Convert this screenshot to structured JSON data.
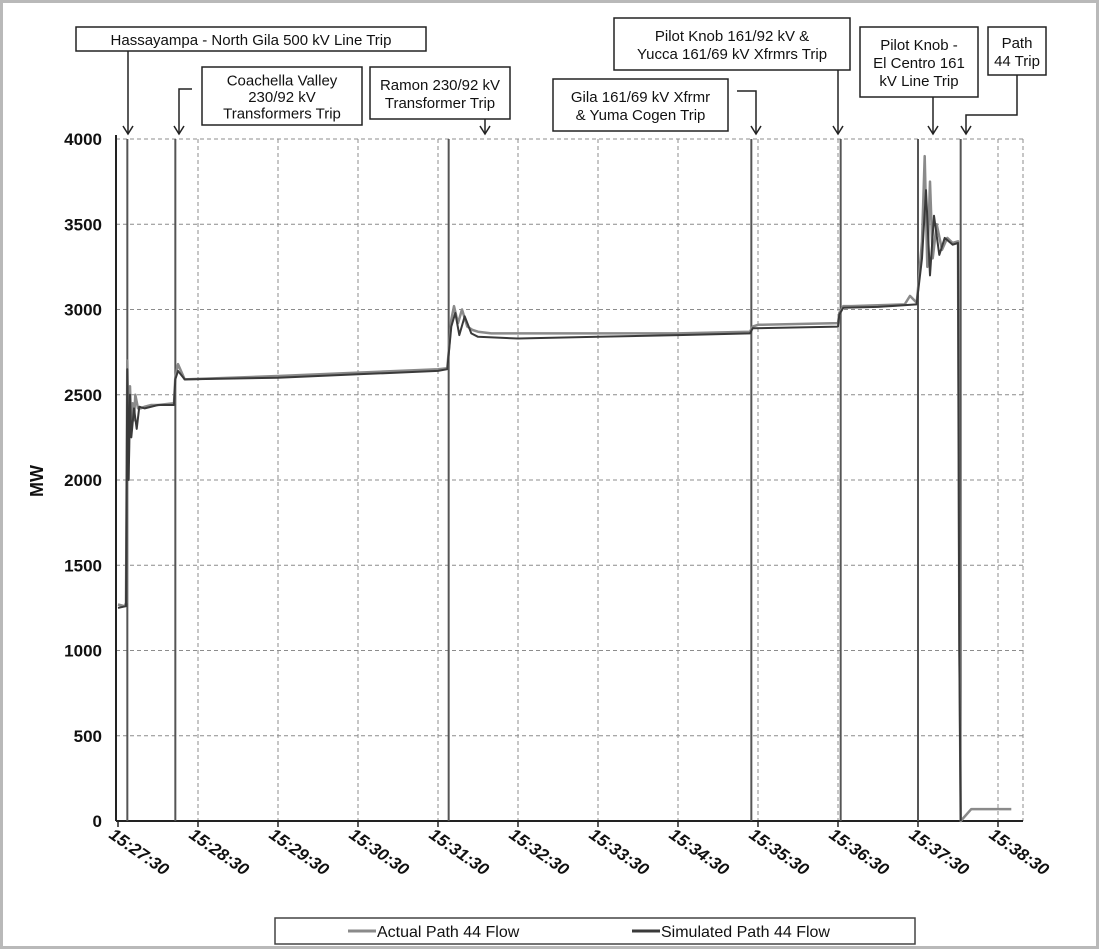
{
  "chart_data": {
    "type": "line",
    "title": "",
    "xlabel": "",
    "ylabel": "MW",
    "ylim": [
      0,
      4000
    ],
    "yticks": [
      0,
      500,
      1000,
      1500,
      2000,
      2500,
      3000,
      3500,
      4000
    ],
    "xlim": [
      "15:27:30",
      "15:38:50"
    ],
    "xtick_labels": [
      "15:27:30",
      "15:28:30",
      "15:29:30",
      "15:30:30",
      "15:31:30",
      "15:32:30",
      "15:33:30",
      "15:34:30",
      "15:35:30",
      "15:36:30",
      "15:37:30",
      "15:38:30"
    ],
    "grid": true,
    "legend_position": "bottom",
    "colors": {
      "actual": "#8a8a8a",
      "simulated": "#3a3a3a",
      "event_line": "#555555",
      "grid": "#8c8c8c"
    },
    "events": [
      {
        "time": "15:27:37",
        "label": "Hassayampa - North Gila 500 kV Line Trip"
      },
      {
        "time": "15:28:13",
        "label": "Coachella Valley 230/92 kV Transformers Trip"
      },
      {
        "time": "15:31:38",
        "label": "Ramon 230/92 kV Transformer Trip"
      },
      {
        "time": "15:35:25",
        "label": "Gila 161/69 kV Xfrmr & Yuma Cogen Trip"
      },
      {
        "time": "15:36:32",
        "label": "Pilot Knob 161/92 kV & Yucca 161/69 kV Xfrmrs Trip"
      },
      {
        "time": "15:37:30",
        "label": "Pilot Knob - El Centro 161 kV Line Trip"
      },
      {
        "time": "15:38:02",
        "label": "Path 44 Trip"
      }
    ],
    "series": [
      {
        "name": "Actual Path 44 Flow",
        "x": [
          "15:27:30",
          "15:27:35",
          "15:27:36",
          "15:27:37",
          "15:27:38",
          "15:27:39",
          "15:27:40",
          "15:27:41",
          "15:27:42",
          "15:27:43",
          "15:27:45",
          "15:27:47",
          "15:27:50",
          "15:27:55",
          "15:28:00",
          "15:28:12",
          "15:28:13",
          "15:28:15",
          "15:28:20",
          "15:29:30",
          "15:30:30",
          "15:31:30",
          "15:31:37",
          "15:31:40",
          "15:31:42",
          "15:31:45",
          "15:31:48",
          "15:31:52",
          "15:31:56",
          "15:32:00",
          "15:32:10",
          "15:32:30",
          "15:33:30",
          "15:34:30",
          "15:35:24",
          "15:35:26",
          "15:35:30",
          "15:36:30",
          "15:36:31",
          "15:36:34",
          "15:36:40",
          "15:37:00",
          "15:37:20",
          "15:37:24",
          "15:37:29",
          "15:37:30",
          "15:37:33",
          "15:37:35",
          "15:37:37",
          "15:37:39",
          "15:37:41",
          "15:37:44",
          "15:37:48",
          "15:37:52",
          "15:37:56",
          "15:38:00",
          "15:38:01",
          "15:38:02",
          "15:38:10",
          "15:38:40"
        ],
        "values": [
          1270,
          1260,
          1280,
          2700,
          2100,
          2550,
          2300,
          2450,
          2350,
          2500,
          2420,
          2420,
          2430,
          2440,
          2440,
          2450,
          2600,
          2680,
          2590,
          2610,
          2630,
          2650,
          2655,
          2940,
          3020,
          2920,
          3000,
          2900,
          2880,
          2870,
          2860,
          2860,
          2860,
          2860,
          2870,
          2900,
          2910,
          2920,
          2980,
          3020,
          3020,
          3025,
          3030,
          3080,
          3040,
          3120,
          3400,
          3900,
          3250,
          3750,
          3300,
          3500,
          3350,
          3420,
          3390,
          3400,
          1200,
          0,
          70,
          70
        ]
      },
      {
        "name": "Simulated Path 44 Flow",
        "x": [
          "15:27:30",
          "15:27:36",
          "15:27:37",
          "15:27:38",
          "15:27:39",
          "15:27:40",
          "15:27:42",
          "15:27:44",
          "15:27:46",
          "15:27:50",
          "15:28:00",
          "15:28:12",
          "15:28:13",
          "15:28:15",
          "15:28:20",
          "15:29:30",
          "15:30:30",
          "15:31:30",
          "15:31:37",
          "15:31:40",
          "15:31:43",
          "15:31:46",
          "15:31:50",
          "15:31:55",
          "15:32:00",
          "15:32:30",
          "15:33:30",
          "15:34:30",
          "15:35:24",
          "15:35:26",
          "15:36:30",
          "15:36:31",
          "15:36:34",
          "15:37:00",
          "15:37:29",
          "15:37:30",
          "15:37:33",
          "15:37:36",
          "15:37:39",
          "15:37:42",
          "15:37:46",
          "15:37:50",
          "15:37:56",
          "15:38:00",
          "15:38:01",
          "15:38:02"
        ],
        "values": [
          1250,
          1260,
          2650,
          2000,
          2500,
          2250,
          2420,
          2300,
          2430,
          2420,
          2440,
          2440,
          2590,
          2640,
          2590,
          2600,
          2620,
          2640,
          2650,
          2900,
          2980,
          2850,
          2960,
          2860,
          2840,
          2830,
          2840,
          2850,
          2860,
          2890,
          2900,
          2970,
          3010,
          3015,
          3030,
          3100,
          3300,
          3700,
          3200,
          3550,
          3320,
          3420,
          3380,
          3390,
          1000,
          0
        ]
      }
    ]
  }
}
